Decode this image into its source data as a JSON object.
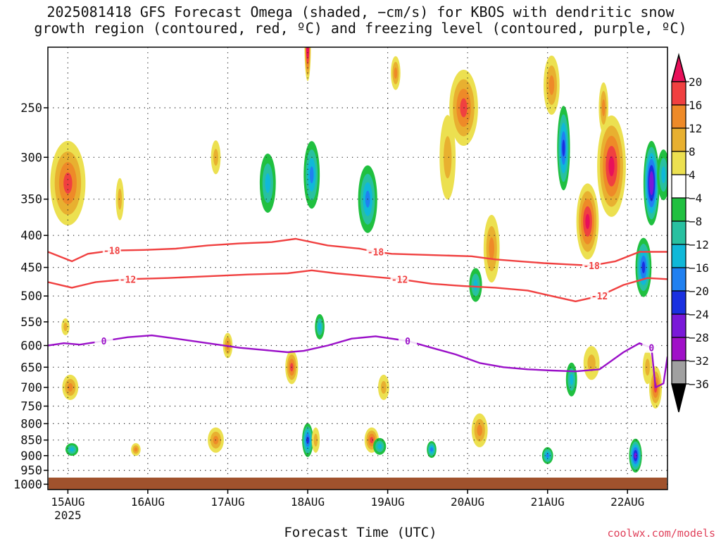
{
  "title_line1": "2025081418 GFS Forecast Omega (shaded, −cm/s) for KBOS with dendritic snow",
  "title_line2": "growth region (contoured, red, ºC) and freezing level (contoured, purple, ºC)",
  "credit": "coolwx.com/models",
  "colors": {
    "dendritic_contour": "#f04040",
    "freezing_contour": "#9a10c8",
    "ground": "#a0522d"
  },
  "chart_data": {
    "type": "heatmap",
    "title": "2025081418 GFS Forecast Omega (shaded, −cm/s) for KBOS with dendritic snow growth region (contoured, red, ºC) and freezing level (contoured, purple, ºC)",
    "xlabel": "Forecast Time (UTC)",
    "ylabel": "",
    "x_range_days": [
      0,
      7.75
    ],
    "x_ticks": [
      {
        "day": 0.25,
        "label": "15AUG"
      },
      {
        "day": 1.25,
        "label": "16AUG"
      },
      {
        "day": 2.25,
        "label": "17AUG"
      },
      {
        "day": 3.25,
        "label": "18AUG"
      },
      {
        "day": 4.25,
        "label": "19AUG"
      },
      {
        "day": 5.25,
        "label": "20AUG"
      },
      {
        "day": 6.25,
        "label": "21AUG"
      },
      {
        "day": 7.25,
        "label": "22AUG"
      }
    ],
    "year_label": "2025",
    "y_axis": "pressure (hPa), log scale, top 200, bottom 1020",
    "y_ticks": [
      250,
      300,
      350,
      400,
      450,
      500,
      550,
      600,
      650,
      700,
      750,
      800,
      850,
      900,
      950,
      1000
    ],
    "grid": true,
    "colorbar": {
      "labels": [
        "20",
        "16",
        "12",
        "8",
        "4",
        "−4",
        "−8",
        "−12",
        "−16",
        "−20",
        "−24",
        "−28",
        "−32",
        "−36"
      ],
      "colors": [
        "#e8105a",
        "#f04040",
        "#ee8a28",
        "#e8b030",
        "#ece050",
        "#ffffff",
        "#20c040",
        "#28c0a0",
        "#10b8d8",
        "#2080f0",
        "#1a30e0",
        "#7a18d8",
        "#a010c8",
        "#a0a0a0",
        "#000000"
      ]
    },
    "contours": [
      {
        "label": "-18",
        "color": "#f04040",
        "days": [
          0.0,
          0.3,
          0.5,
          0.8,
          1.2,
          1.6,
          2.0,
          2.4,
          2.8,
          3.1,
          3.5,
          3.9,
          4.1,
          4.3,
          4.8,
          5.3,
          5.6,
          5.9,
          6.2,
          6.5,
          6.8,
          7.1,
          7.4,
          7.75
        ],
        "pressures": [
          425,
          440,
          428,
          423,
          422,
          420,
          415,
          412,
          410,
          405,
          415,
          420,
          425,
          428,
          430,
          432,
          437,
          440,
          443,
          445,
          447,
          440,
          425,
          425
        ]
      },
      {
        "label": "-12",
        "color": "#f04040",
        "days": [
          0.0,
          0.3,
          0.6,
          1.0,
          1.5,
          2.0,
          2.5,
          3.0,
          3.3,
          3.6,
          4.0,
          4.4,
          4.8,
          5.2,
          5.6,
          6.0,
          6.3,
          6.6,
          6.9,
          7.2,
          7.5,
          7.75
        ],
        "pressures": [
          475,
          485,
          475,
          470,
          468,
          465,
          462,
          460,
          455,
          460,
          465,
          470,
          478,
          482,
          485,
          490,
          500,
          510,
          500,
          480,
          468,
          470
        ]
      },
      {
        "label": "0",
        "color": "#9a10c8",
        "days": [
          0.0,
          0.2,
          0.4,
          0.7,
          1.0,
          1.3,
          1.6,
          2.0,
          2.4,
          2.7,
          3.0,
          3.2,
          3.5,
          3.8,
          4.1,
          4.5,
          4.8,
          5.1,
          5.4,
          5.7,
          6.0,
          6.3,
          6.6,
          6.9,
          7.2,
          7.4,
          7.55,
          7.6,
          7.7,
          7.75
        ],
        "pressures": [
          600,
          595,
          598,
          590,
          582,
          578,
          585,
          595,
          605,
          610,
          615,
          612,
          600,
          585,
          580,
          590,
          605,
          620,
          640,
          650,
          655,
          658,
          660,
          655,
          615,
          595,
          605,
          700,
          690,
          625
        ]
      }
    ]
  }
}
